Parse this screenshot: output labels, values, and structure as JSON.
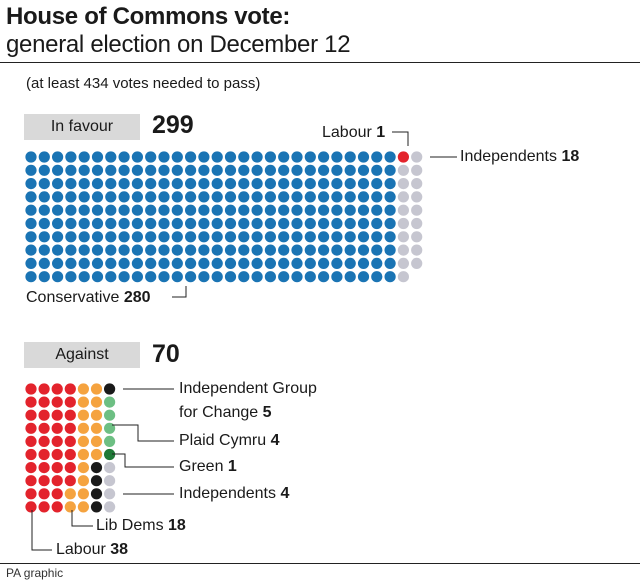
{
  "header": {
    "title": "House of Commons vote:",
    "subtitle": "general election on December 12"
  },
  "note": "(at least 434 votes needed to pass)",
  "source": "PA graphic",
  "colors": {
    "conservative": "#1a74b4",
    "labour": "#e3232c",
    "independent": "#c6c6d0",
    "lib_dem": "#f5a33f",
    "independent_group": "#1a1a1a",
    "plaid_cymru": "#6dbf83",
    "green": "#1f7a37"
  },
  "chart_data": [
    {
      "type": "bar",
      "section": "In favour",
      "total": "299",
      "series": [
        {
          "name": "Conservative",
          "value": 280
        },
        {
          "name": "Labour",
          "value": 1
        },
        {
          "name": "Independents",
          "value": 18
        }
      ]
    },
    {
      "type": "bar",
      "section": "Against",
      "total": "70",
      "series": [
        {
          "name": "Labour",
          "value": 38
        },
        {
          "name": "Lib Dems",
          "value": 18
        },
        {
          "name": "Independent Group for Change",
          "value": 5
        },
        {
          "name": "Plaid Cymru",
          "value": 4
        },
        {
          "name": "Green",
          "value": 1
        },
        {
          "name": "Independents",
          "value": 4
        }
      ]
    }
  ],
  "labels": {
    "favour": {
      "labour_name": "Labour",
      "labour_count": "1",
      "ind_name": "Independents",
      "ind_count": "18",
      "con_name": "Conservative",
      "con_count": "280"
    },
    "against": {
      "tig_line1": "Independent Group",
      "tig_line2": "for Change",
      "tig_count": "5",
      "plaid_name": "Plaid Cymru",
      "plaid_count": "4",
      "green_name": "Green",
      "green_count": "1",
      "ind_name": "Independents",
      "ind_count": "4",
      "ld_name": "Lib Dems",
      "ld_count": "18",
      "lab_name": "Labour",
      "lab_count": "38"
    }
  }
}
